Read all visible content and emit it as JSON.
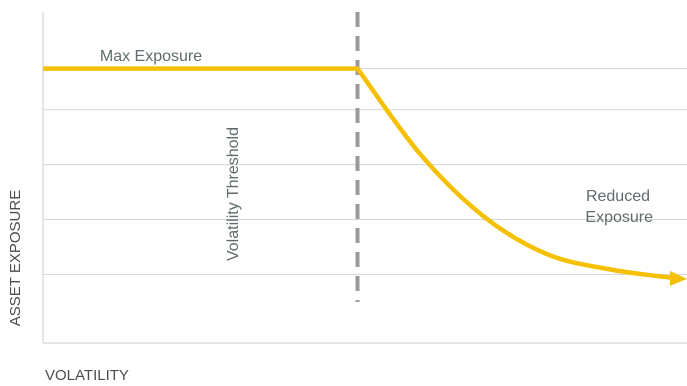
{
  "chart_data": {
    "type": "line",
    "xlabel": "VOLATILITY",
    "ylabel": "ASSET EXPOSURE",
    "grid": true,
    "series": [
      {
        "x": [
          0,
          0.5,
          0.6,
          0.7,
          0.8,
          0.9,
          1.0
        ],
        "values": [
          0.8,
          0.8,
          0.55,
          0.37,
          0.26,
          0.215,
          0.19
        ]
      }
    ],
    "threshold": {
      "x": 0.5,
      "label": "Volatility Threshold"
    },
    "annotations": {
      "max_exposure": "Max Exposure",
      "reduced_exposure_line1": "Reduced",
      "reduced_exposure_line2": "Exposure"
    },
    "colors": {
      "curve": "#f5c000",
      "threshold": "#9a9a9a",
      "grid": "#d4d4d4",
      "axis": "#cccccc"
    }
  }
}
